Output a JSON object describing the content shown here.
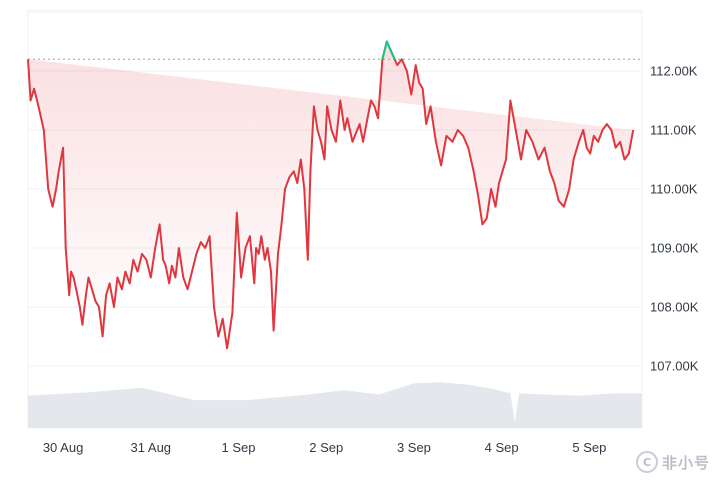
{
  "chart_data": {
    "type": "line",
    "title": "",
    "xlabel": "",
    "ylabel": "",
    "x_ticks": [
      "30 Aug",
      "31 Aug",
      "1 Sep",
      "2 Sep",
      "3 Sep",
      "4 Sep",
      "5 Sep"
    ],
    "y_ticks": [
      "107.00K",
      "108.00K",
      "109.00K",
      "110.00K",
      "111.00K",
      "112.00K"
    ],
    "y_tick_values": [
      107000,
      108000,
      109000,
      110000,
      111000,
      112000
    ],
    "ylim": [
      106000,
      113000
    ],
    "reference_price": 112200,
    "grid": "horizontal",
    "x_day_range": [
      -0.4,
      6.6
    ],
    "series": [
      {
        "day": [
          -0.4,
          -0.37,
          -0.33,
          -0.28,
          -0.22,
          -0.17,
          -0.12,
          -0.08,
          -0.05,
          0.0,
          0.03,
          0.07,
          0.09,
          0.12,
          0.15,
          0.19,
          0.22,
          0.26,
          0.29,
          0.33,
          0.37,
          0.41,
          0.45,
          0.49,
          0.53,
          0.58,
          0.62,
          0.67,
          0.71,
          0.76,
          0.8,
          0.85,
          0.9,
          0.95,
          1.0,
          1.05,
          1.1,
          1.14,
          1.17,
          1.21,
          1.24,
          1.28,
          1.32,
          1.37,
          1.42,
          1.47,
          1.52,
          1.57,
          1.62,
          1.67,
          1.72,
          1.77,
          1.82,
          1.87,
          1.93,
          1.98,
          2.03,
          2.08,
          2.13,
          2.18,
          2.2,
          2.23,
          2.26,
          2.3,
          2.33,
          2.37,
          2.4,
          2.45,
          2.49,
          2.53,
          2.58,
          2.63,
          2.67,
          2.71,
          2.75,
          2.79,
          2.82,
          2.86,
          2.9,
          2.94,
          2.98,
          3.01,
          3.06,
          3.11,
          3.16,
          3.21,
          3.24,
          3.3,
          3.38,
          3.42,
          3.47,
          3.51,
          3.55,
          3.59,
          3.64,
          3.69,
          3.75,
          3.81,
          3.86,
          3.92,
          3.97,
          4.02,
          4.06,
          4.1,
          4.14,
          4.19,
          4.25,
          4.31,
          4.37,
          4.44,
          4.5,
          4.56,
          4.62,
          4.68,
          4.73,
          4.78,
          4.83,
          4.88,
          4.93,
          4.97,
          5.01,
          5.05,
          5.1,
          5.16,
          5.22,
          5.28,
          5.35,
          5.42,
          5.49,
          5.55,
          5.6,
          5.65,
          5.71,
          5.77,
          5.82,
          5.88,
          5.93,
          5.97,
          6.01,
          6.05,
          6.1,
          6.15,
          6.2,
          6.25,
          6.3,
          6.35,
          6.4,
          6.45,
          6.5,
          6.55,
          6.59
        ],
        "values": [
          112200,
          111500,
          111700,
          111400,
          111000,
          110000,
          109700,
          110000,
          110300,
          110700,
          109000,
          108200,
          108600,
          108500,
          108300,
          108000,
          107700,
          108200,
          108500,
          108300,
          108100,
          108000,
          107500,
          108200,
          108400,
          108000,
          108500,
          108300,
          108600,
          108400,
          108800,
          108600,
          108900,
          108800,
          108500,
          109000,
          109400,
          108800,
          108700,
          108400,
          108700,
          108500,
          109000,
          108500,
          108300,
          108600,
          108900,
          109100,
          109000,
          109200,
          108000,
          107500,
          107800,
          107300,
          107900,
          109600,
          108500,
          109000,
          109200,
          108400,
          109000,
          108900,
          109200,
          108800,
          109000,
          108600,
          107600,
          108900,
          109400,
          110000,
          110200,
          110300,
          110100,
          110500,
          110000,
          108800,
          110300,
          111400,
          111000,
          110800,
          110500,
          111400,
          111000,
          110800,
          111500,
          111000,
          111200,
          110800,
          111100,
          110800,
          111200,
          111500,
          111400,
          111200,
          112200,
          112500,
          112300,
          112100,
          112200,
          112000,
          111600,
          112100,
          111800,
          111700,
          111100,
          111400,
          110800,
          110400,
          110900,
          110800,
          111000,
          110900,
          110700,
          110300,
          109900,
          109400,
          109500,
          110000,
          109700,
          110100,
          110300,
          110500,
          111500,
          111000,
          110500,
          111000,
          110800,
          110500,
          110700,
          110300,
          110100,
          109800,
          109700,
          110000,
          110500,
          110800,
          111000,
          110700,
          110600,
          110900,
          110800,
          111000,
          111100,
          111000,
          110700,
          110800,
          110500,
          110600,
          111000
        ],
        "color": "#e0373f",
        "above_reference_color": "#16c784"
      }
    ],
    "volume": {
      "day": [
        -0.4,
        0.3,
        0.9,
        1.5,
        2.1,
        2.8,
        3.2,
        3.6,
        4.0,
        4.3,
        4.6,
        4.9,
        5.1,
        5.15,
        5.2,
        5.5,
        5.9,
        6.3,
        6.6
      ],
      "values": [
        0.58,
        0.64,
        0.72,
        0.5,
        0.5,
        0.6,
        0.68,
        0.6,
        0.8,
        0.82,
        0.78,
        0.7,
        0.62,
        0.1,
        0.62,
        0.6,
        0.58,
        0.62,
        0.62
      ],
      "color": "#e4e7ec"
    }
  },
  "colors": {
    "line_down": "#e0373f",
    "line_up": "#16c784",
    "area_fill": "#e0373f",
    "grid": "#eef0f3",
    "axis_text": "#333a45",
    "reference_line": "#9aa0a8"
  },
  "watermark": {
    "text": "非小号",
    "logo_icon": "coin-circle-icon",
    "logo_glyph": "C"
  }
}
